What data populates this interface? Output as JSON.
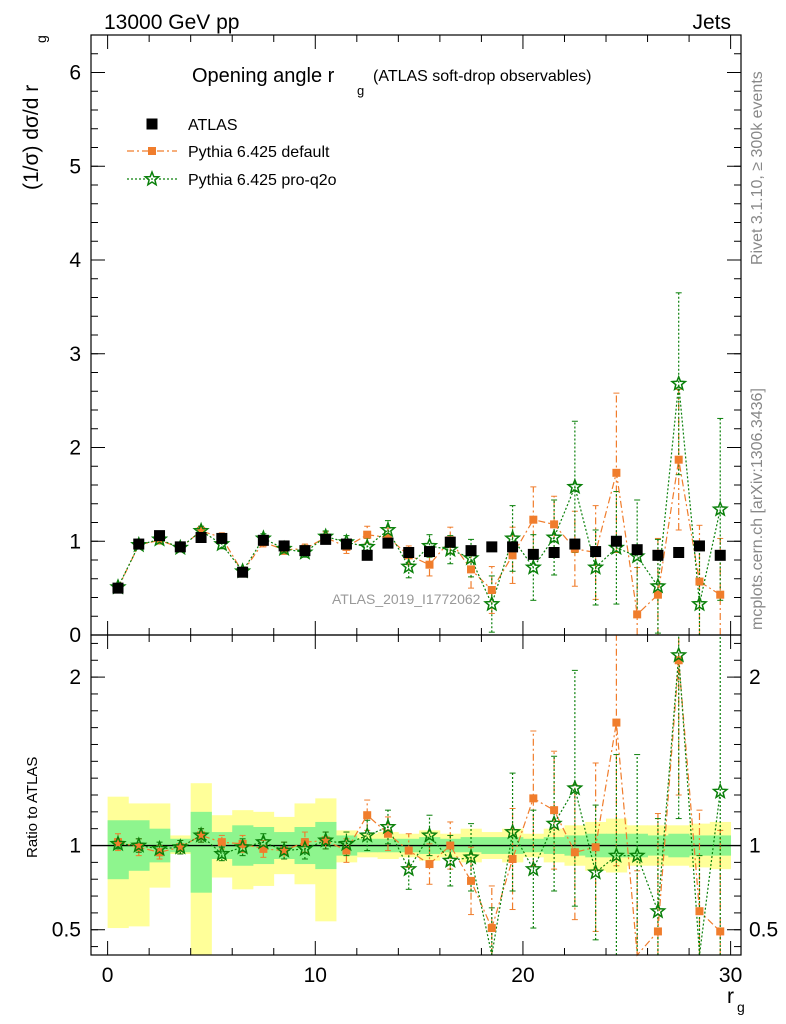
{
  "header": {
    "left": "13000 GeV pp",
    "right": "Jets"
  },
  "main_title": {
    "main": "Opening angle r",
    "sub": "g",
    "suffix": "(ATLAS soft-drop observables)"
  },
  "y_label_main": {
    "text": "(1/σ) dσ/d r",
    "sub": "g"
  },
  "y_label_ratio": "Ratio to ATLAS",
  "x_label": {
    "text": "r",
    "sub": "g"
  },
  "side_right_top": "Rivet 3.1.10, ≥ 300k events",
  "side_right_bottom": "mcplots.cern.ch [arXiv:1306.3436]",
  "analysis_watermark": "ATLAS_2019_I1772062",
  "colors": {
    "atlas": "#000000",
    "pythia_default": "#f07d2c",
    "pythia_proq2o": "#0a800a",
    "band_inner": "#8ef58e",
    "band_outer": "#ffff99"
  },
  "legend": [
    {
      "label": "ATLAS",
      "style": "data"
    },
    {
      "label": "Pythia 6.425 default",
      "style": "default"
    },
    {
      "label": "Pythia 6.425 pro-q2o",
      "style": "proq2o"
    }
  ],
  "chart_data": {
    "type": "scatter",
    "x": [
      0.5,
      1.5,
      2.5,
      3.5,
      4.5,
      5.5,
      6.5,
      7.5,
      8.5,
      9.5,
      10.5,
      11.5,
      12.5,
      13.5,
      14.5,
      15.5,
      16.5,
      17.5,
      18.5,
      19.5,
      20.5,
      21.5,
      22.5,
      23.5,
      24.5,
      25.5,
      26.5,
      27.5,
      28.5,
      29.5
    ],
    "xlim": [
      -0.8,
      30.5
    ],
    "xticks": [
      0,
      10,
      20,
      30
    ],
    "main": {
      "ylim": [
        0,
        6.4
      ],
      "yticks": [
        0,
        1,
        2,
        3,
        4,
        5,
        6
      ],
      "series": [
        {
          "name": "ATLAS",
          "key": "atlas",
          "values": [
            0.5,
            0.97,
            1.06,
            0.94,
            1.04,
            1.03,
            0.67,
            1.01,
            0.95,
            0.9,
            1.02,
            0.97,
            0.85,
            0.98,
            0.88,
            0.89,
            0.99,
            0.9,
            0.94,
            0.94,
            0.86,
            0.88,
            0.97,
            0.89,
            1.0,
            0.91,
            0.85,
            0.88,
            0.95,
            0.85
          ],
          "errors": [
            0.02,
            0.02,
            0.02,
            0.02,
            0.03,
            0.03,
            0.02,
            0.02,
            0.02,
            0.03,
            0.03,
            0.04,
            0.04,
            0.04,
            0.04,
            0.04,
            0.04,
            0.05,
            0.04,
            0.05,
            0.05,
            0.05,
            0.05,
            0.05,
            0.05,
            0.05,
            0.05,
            0.05,
            0.05,
            0.05
          ]
        },
        {
          "name": "Pythia 6.425 default",
          "key": "pythia_default",
          "values": [
            0.5,
            0.96,
            1.01,
            0.93,
            1.11,
            1.04,
            0.67,
            0.99,
            0.91,
            0.92,
            1.04,
            0.94,
            1.07,
            1.04,
            0.85,
            0.75,
            1.01,
            0.7,
            0.48,
            0.85,
            1.23,
            1.18,
            0.92,
            0.88,
            1.73,
            0.22,
            0.43,
            1.87,
            0.57,
            0.43
          ],
          "errors": [
            0.02,
            0.04,
            0.04,
            0.04,
            0.05,
            0.05,
            0.04,
            0.05,
            0.05,
            0.05,
            0.06,
            0.07,
            0.09,
            0.1,
            0.1,
            0.12,
            0.14,
            0.2,
            0.25,
            0.3,
            0.35,
            0.3,
            0.4,
            0.5,
            0.85,
            0.5,
            0.6,
            0.75,
            0.6,
            0.6
          ]
        },
        {
          "name": "Pythia 6.425 pro-q2o",
          "key": "pythia_proq2o",
          "values": [
            0.51,
            0.96,
            1.02,
            0.93,
            1.11,
            0.97,
            0.68,
            1.03,
            0.92,
            0.88,
            1.05,
            0.99,
            0.94,
            1.12,
            0.73,
            0.95,
            0.91,
            0.82,
            0.33,
            1.03,
            0.72,
            1.04,
            1.58,
            0.72,
            0.93,
            0.84,
            0.52,
            2.68,
            0.33,
            1.34
          ],
          "errors": [
            0.02,
            0.04,
            0.04,
            0.04,
            0.05,
            0.05,
            0.04,
            0.05,
            0.05,
            0.05,
            0.06,
            0.07,
            0.09,
            0.1,
            0.12,
            0.12,
            0.15,
            0.2,
            0.3,
            0.35,
            0.35,
            0.4,
            0.7,
            0.4,
            0.6,
            0.6,
            0.5,
            0.97,
            0.6,
            0.97
          ]
        }
      ]
    },
    "ratio": {
      "ylim": [
        0.35,
        2.25
      ],
      "yticks": [
        0.5,
        1,
        2
      ],
      "band_inner": {
        "lo": [
          0.8,
          0.85,
          0.9,
          0.96,
          0.72,
          0.92,
          0.88,
          0.89,
          0.92,
          0.89,
          0.86,
          0.94,
          0.96,
          0.96,
          0.96,
          0.95,
          0.96,
          0.96,
          0.95,
          0.95,
          0.96,
          0.95,
          0.94,
          0.93,
          0.93,
          0.93,
          0.94,
          0.93,
          0.94,
          0.94
        ],
        "hi": [
          1.15,
          1.15,
          1.1,
          1.04,
          1.2,
          1.08,
          1.12,
          1.11,
          1.08,
          1.11,
          1.14,
          1.06,
          1.04,
          1.04,
          1.04,
          1.05,
          1.04,
          1.05,
          1.05,
          1.05,
          1.04,
          1.05,
          1.06,
          1.07,
          1.07,
          1.07,
          1.06,
          1.07,
          1.06,
          1.06
        ]
      },
      "band_outer": {
        "lo": [
          0.51,
          0.52,
          0.75,
          0.95,
          0.3,
          0.81,
          0.74,
          0.76,
          0.83,
          0.77,
          0.55,
          0.9,
          0.93,
          0.92,
          0.93,
          0.91,
          0.93,
          0.9,
          0.92,
          0.9,
          0.93,
          0.9,
          0.88,
          0.85,
          0.84,
          0.88,
          0.88,
          0.88,
          0.87,
          0.86
        ],
        "hi": [
          1.29,
          1.25,
          1.25,
          1.06,
          1.37,
          1.18,
          1.21,
          1.2,
          1.17,
          1.25,
          1.28,
          1.09,
          1.07,
          1.08,
          1.07,
          1.09,
          1.07,
          1.1,
          1.08,
          1.1,
          1.07,
          1.1,
          1.12,
          1.14,
          1.16,
          1.12,
          1.12,
          1.12,
          1.13,
          1.14
        ]
      },
      "series": [
        {
          "name": "Pythia 6.425 default",
          "key": "pythia_default",
          "values": [
            1.02,
            0.99,
            0.96,
            0.99,
            1.06,
            1.02,
            1.01,
            0.98,
            0.97,
            1.02,
            1.03,
            0.97,
            1.18,
            1.07,
            0.97,
            0.89,
            1.0,
            0.79,
            0.51,
            0.92,
            1.28,
            1.21,
            0.96,
            0.99,
            1.73,
            0.25,
            0.49,
            2.1,
            0.61,
            0.49
          ],
          "errors": [
            0.05,
            0.05,
            0.04,
            0.04,
            0.04,
            0.04,
            0.05,
            0.05,
            0.05,
            0.06,
            0.05,
            0.07,
            0.09,
            0.1,
            0.1,
            0.12,
            0.14,
            0.2,
            0.25,
            0.3,
            0.4,
            0.35,
            0.4,
            0.5,
            0.85,
            0.6,
            0.7,
            0.8,
            0.6,
            0.6
          ]
        },
        {
          "name": "Pythia 6.425 pro-q2o",
          "key": "pythia_proq2o",
          "values": [
            1.01,
            1.0,
            0.98,
            0.99,
            1.06,
            0.95,
            0.99,
            1.02,
            0.97,
            0.98,
            1.03,
            1.01,
            1.06,
            1.11,
            0.86,
            1.06,
            0.91,
            0.93,
            0.33,
            1.08,
            0.86,
            1.13,
            1.34,
            0.84,
            0.94,
            0.94,
            0.61,
            2.13,
            0.34,
            1.32
          ],
          "errors": [
            0.03,
            0.04,
            0.04,
            0.04,
            0.04,
            0.04,
            0.05,
            0.05,
            0.05,
            0.06,
            0.05,
            0.07,
            0.09,
            0.1,
            0.12,
            0.12,
            0.15,
            0.2,
            0.3,
            0.35,
            0.35,
            0.4,
            0.7,
            0.4,
            0.6,
            0.6,
            0.55,
            0.97,
            0.6,
            0.97
          ]
        }
      ]
    }
  }
}
